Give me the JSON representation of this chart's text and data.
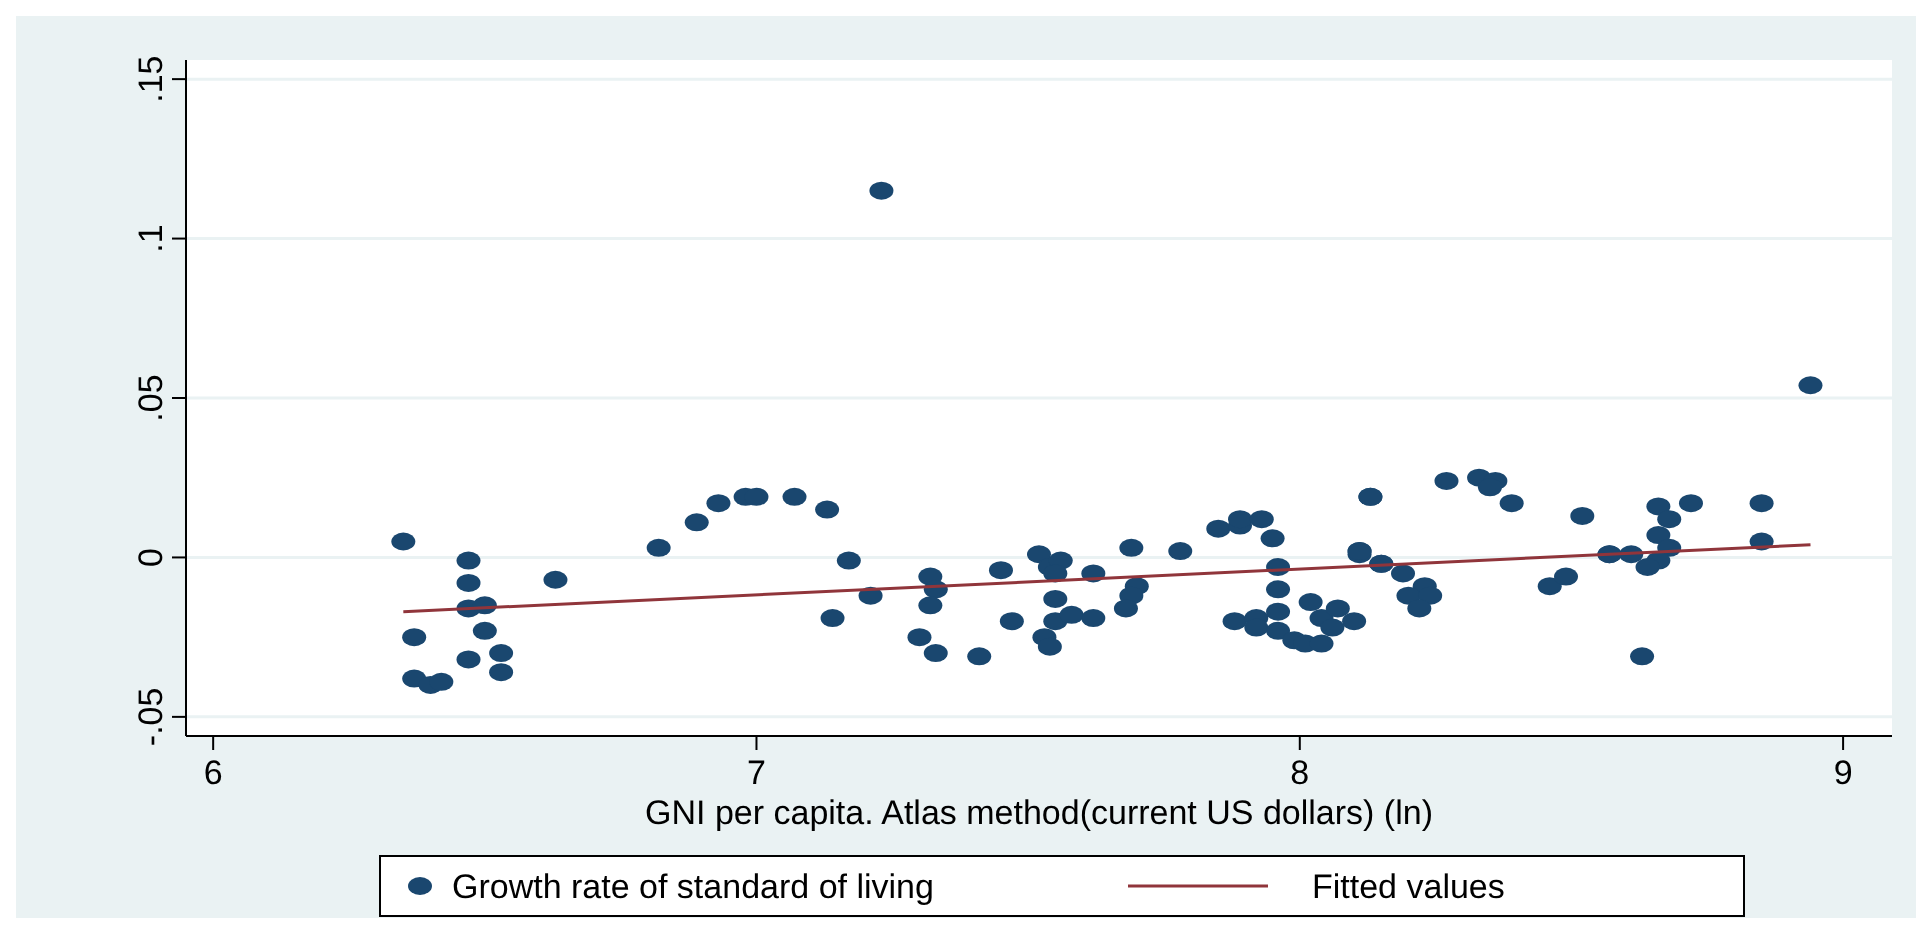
{
  "chart_data": {
    "type": "scatter",
    "xlabel": "GNI per capita. Atlas method(current US dollars) (ln)",
    "xlim": [
      5.95,
      9.09
    ],
    "ylim": [
      -0.056,
      0.156
    ],
    "xticks": [
      6,
      7,
      8,
      9
    ],
    "yticks": [
      {
        "value": -0.05,
        "label": "-.05"
      },
      0,
      {
        "value": 0.05,
        "label": ".05"
      },
      {
        "value": 0.1,
        "label": ".1"
      },
      {
        "value": 0.15,
        "label": ".15"
      }
    ],
    "grid": "y",
    "legend": "bottom",
    "series": [
      {
        "name": "Growth rate of standard of living",
        "marker": "circle",
        "color": "#1a476f",
        "x": [
          6.35,
          6.37,
          6.37,
          6.4,
          6.42,
          6.47,
          6.47,
          6.47,
          6.5,
          6.5,
          6.47,
          6.53,
          6.53,
          6.63,
          6.82,
          6.89,
          6.93,
          6.98,
          7.0,
          7.07,
          7.13,
          7.17,
          7.21,
          7.14,
          7.23,
          7.32,
          7.33,
          7.32,
          7.3,
          7.33,
          7.41,
          7.45,
          7.47,
          7.52,
          7.54,
          7.56,
          7.55,
          7.55,
          7.55,
          7.53,
          7.54,
          7.58,
          7.62,
          7.62,
          7.69,
          7.7,
          7.69,
          7.68,
          7.78,
          7.85,
          7.89,
          7.89,
          7.93,
          7.95,
          7.96,
          7.96,
          7.96,
          7.88,
          7.92,
          7.92,
          7.96,
          7.99,
          8.01,
          8.04,
          8.02,
          8.04,
          8.07,
          8.06,
          8.1,
          8.11,
          8.11,
          8.13,
          8.15,
          8.94,
          8.13,
          8.11,
          8.15,
          8.19,
          8.23,
          8.2,
          8.24,
          8.22,
          8.27,
          8.33,
          8.36,
          8.35,
          8.39,
          8.52,
          8.46,
          8.49,
          8.57,
          8.57,
          8.61,
          8.66,
          8.68,
          8.66,
          8.68,
          8.66,
          8.64,
          8.72,
          8.85,
          8.85,
          8.63
        ],
        "values": [
          0.005,
          -0.025,
          -0.038,
          -0.04,
          -0.039,
          -0.001,
          -0.008,
          -0.016,
          -0.015,
          -0.023,
          -0.032,
          -0.03,
          -0.036,
          -0.007,
          0.003,
          0.011,
          0.017,
          0.019,
          0.019,
          0.019,
          0.015,
          -0.001,
          -0.012,
          -0.019,
          0.115,
          -0.006,
          -0.01,
          -0.015,
          -0.025,
          -0.03,
          -0.031,
          -0.004,
          -0.02,
          0.001,
          -0.003,
          -0.001,
          -0.005,
          -0.013,
          -0.02,
          -0.025,
          -0.028,
          -0.018,
          -0.019,
          -0.005,
          0.003,
          -0.009,
          -0.012,
          -0.016,
          0.002,
          0.009,
          0.01,
          0.012,
          0.012,
          0.006,
          -0.003,
          -0.01,
          -0.017,
          -0.02,
          -0.019,
          -0.022,
          -0.023,
          -0.026,
          -0.027,
          -0.027,
          -0.014,
          -0.019,
          -0.016,
          -0.022,
          -0.02,
          0.002,
          0.001,
          0.019,
          -0.002,
          0.054,
          0.019,
          0.002,
          -0.002,
          -0.005,
          -0.009,
          -0.012,
          -0.012,
          -0.016,
          0.024,
          0.025,
          0.024,
          0.022,
          0.017,
          0.013,
          -0.009,
          -0.006,
          0.001,
          0.001,
          0.001,
          0.016,
          0.012,
          0.007,
          0.003,
          -0.001,
          -0.003,
          0.017,
          0.017,
          0.005,
          -0.031
        ]
      },
      {
        "name": "Fitted values",
        "type": "line",
        "color": "#90353b",
        "marker": "none",
        "x": [
          6.35,
          8.94
        ],
        "values": [
          -0.017,
          0.004
        ]
      }
    ]
  }
}
